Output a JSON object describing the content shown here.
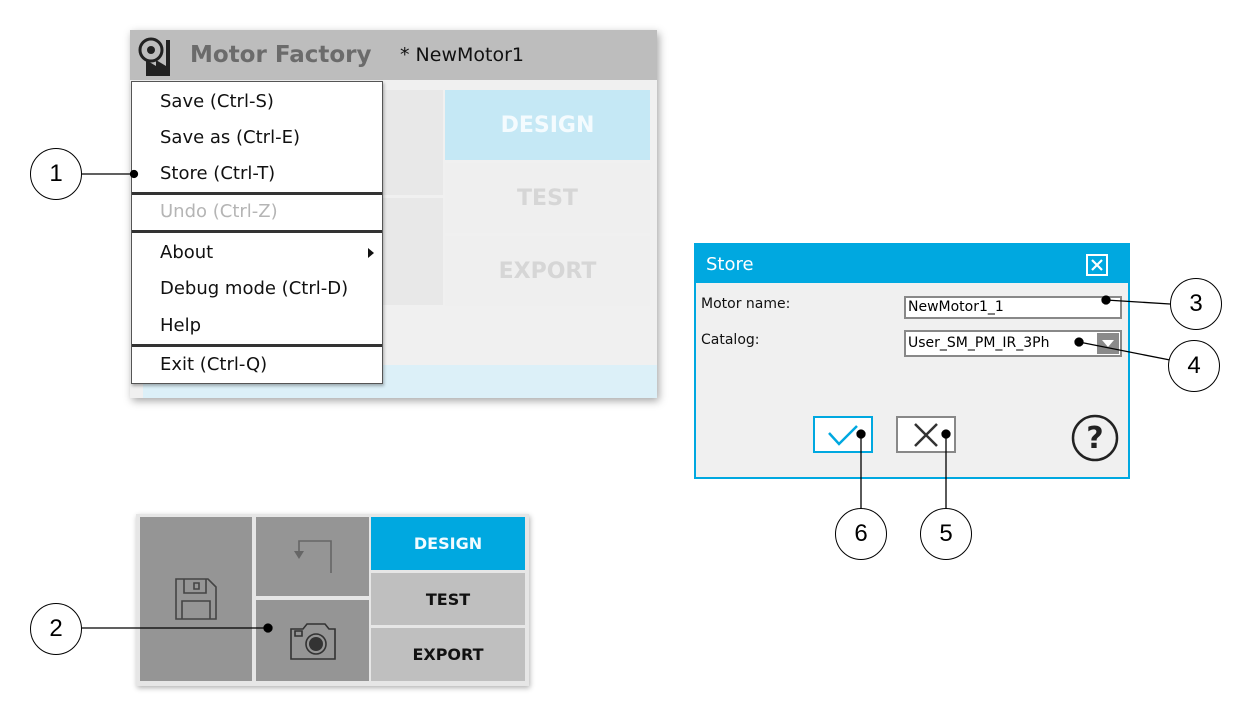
{
  "app": {
    "title": "Motor Factory",
    "document": "* NewMotor1"
  },
  "background_modes": [
    "DESIGN",
    "TEST",
    "EXPORT"
  ],
  "menu": {
    "items": [
      {
        "label": "Save (Ctrl-S)",
        "enabled": true
      },
      {
        "label": "Save as (Ctrl-E)",
        "enabled": true
      },
      {
        "label": "Store (Ctrl-T)",
        "enabled": true
      },
      {
        "label": "Undo (Ctrl-Z)",
        "enabled": false
      },
      {
        "label": "About",
        "enabled": true,
        "submenu": true
      },
      {
        "label": "Debug mode (Ctrl-D)",
        "enabled": true
      },
      {
        "label": "Help",
        "enabled": true
      },
      {
        "label": "Exit (Ctrl-Q)",
        "enabled": true
      }
    ]
  },
  "dialog": {
    "title": "Store",
    "motor_name_label": "Motor name:",
    "motor_name_value": "NewMotor1_1",
    "catalog_label": "Catalog:",
    "catalog_value": "User_SM_PM_IR_3Ph"
  },
  "toolbar": {
    "modes": [
      "DESIGN",
      "TEST",
      "EXPORT"
    ],
    "icons": [
      "save-icon",
      "undo-icon",
      "camera-icon"
    ]
  },
  "callouts": [
    "1",
    "2",
    "3",
    "4",
    "5",
    "6"
  ],
  "colors": {
    "accent": "#00a8e0",
    "tile": "#959595",
    "mode_inactive": "#bfbfbf",
    "design_faded": "#c5e8f5"
  }
}
